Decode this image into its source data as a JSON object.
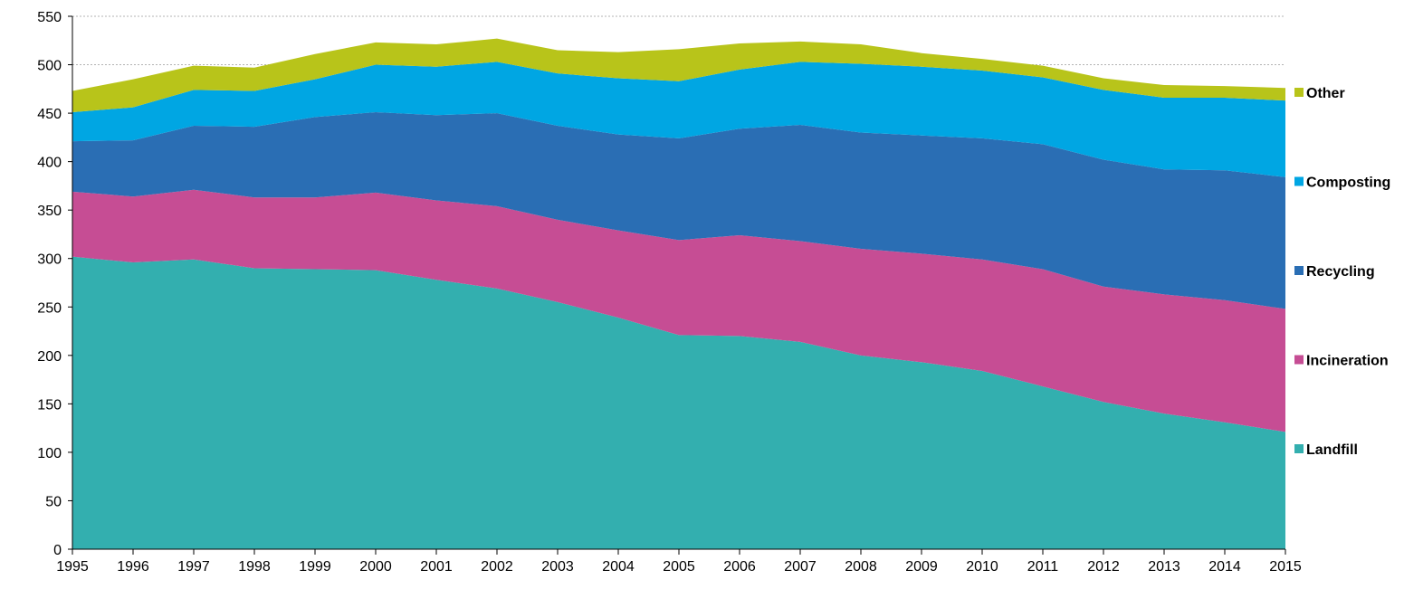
{
  "chart_data": {
    "type": "area",
    "stacked": true,
    "title": "",
    "xlabel": "",
    "ylabel": "",
    "x": [
      1995,
      1996,
      1997,
      1998,
      1999,
      2000,
      2001,
      2002,
      2003,
      2004,
      2005,
      2006,
      2007,
      2008,
      2009,
      2010,
      2011,
      2012,
      2013,
      2014,
      2015
    ],
    "ylim": [
      0,
      550
    ],
    "yticks": [
      0,
      50,
      100,
      150,
      200,
      250,
      300,
      350,
      400,
      450,
      500,
      550
    ],
    "grid": "horizontal dotted",
    "legend_position": "right",
    "series": [
      {
        "name": "Landfill",
        "color": "#33AFAF",
        "values": [
          302,
          296,
          299,
          290,
          289,
          288,
          278,
          269,
          255,
          239,
          221,
          220,
          214,
          200,
          193,
          184,
          168,
          152,
          140,
          131,
          121
        ]
      },
      {
        "name": "Incineration",
        "color": "#C64D94",
        "values": [
          67,
          68,
          72,
          73,
          74,
          80,
          82,
          85,
          85,
          90,
          98,
          104,
          104,
          110,
          112,
          115,
          121,
          119,
          123,
          126,
          127
        ]
      },
      {
        "name": "Recycling",
        "color": "#2A6EB4",
        "values": [
          52,
          58,
          66,
          73,
          83,
          83,
          88,
          96,
          97,
          99,
          105,
          110,
          120,
          120,
          122,
          125,
          129,
          131,
          129,
          134,
          136
        ]
      },
      {
        "name": "Composting",
        "color": "#00A6E3",
        "values": [
          30,
          34,
          37,
          37,
          39,
          49,
          50,
          53,
          54,
          58,
          59,
          61,
          65,
          71,
          71,
          70,
          69,
          72,
          74,
          75,
          79
        ]
      },
      {
        "name": "Other",
        "color": "#B8C41A",
        "values": [
          22,
          29,
          25,
          24,
          26,
          23,
          23,
          24,
          24,
          27,
          33,
          27,
          21,
          20,
          14,
          12,
          12,
          12,
          13,
          12,
          13
        ]
      }
    ]
  }
}
